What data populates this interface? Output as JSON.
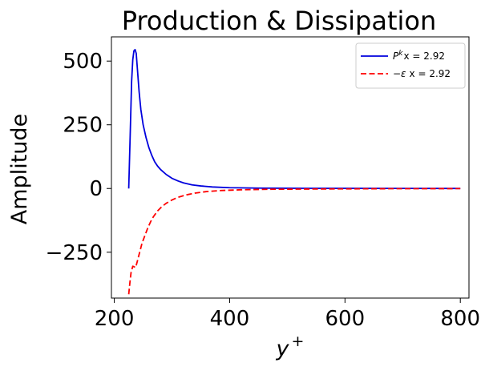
{
  "chart_data": {
    "type": "line",
    "title": "Production & Dissipation",
    "xlabel": "y",
    "xlabel_sup": "+",
    "ylabel": "Amplitude",
    "xlim": [
      195,
      815
    ],
    "ylim": [
      -430,
      595
    ],
    "xticks": [
      {
        "value": 200,
        "label": "200"
      },
      {
        "value": 400,
        "label": "400"
      },
      {
        "value": 600,
        "label": "600"
      },
      {
        "value": 800,
        "label": "800"
      }
    ],
    "yticks": [
      {
        "value": 500,
        "label": "500"
      },
      {
        "value": 250,
        "label": "250"
      },
      {
        "value": 0,
        "label": "0"
      },
      {
        "value": -250,
        "label": "−250"
      }
    ],
    "grid": false,
    "legend_position": "top-right",
    "series": [
      {
        "name_main": "P",
        "name_sup": "k",
        "name_rest": "x = 2.92",
        "color": "#0000dd",
        "dash": "solid",
        "x": [
          225,
          228,
          230,
          232,
          234,
          236,
          238,
          240,
          243,
          246,
          250,
          255,
          260,
          265,
          270,
          275,
          280,
          290,
          300,
          310,
          320,
          335,
          350,
          370,
          400,
          450,
          500,
          600,
          700,
          800
        ],
        "y": [
          0,
          250,
          420,
          505,
          540,
          545,
          530,
          470,
          380,
          310,
          250,
          200,
          160,
          130,
          105,
          88,
          75,
          55,
          40,
          30,
          22,
          14,
          10,
          6,
          3,
          1.5,
          1,
          0.5,
          0.3,
          0.2
        ]
      },
      {
        "name_main": "−ε",
        "name_sup": "",
        "name_rest": "x = 2.92",
        "color": "#ff0000",
        "dash": "dashed",
        "x": [
          225,
          227,
          229,
          232,
          235,
          237,
          240,
          244,
          248,
          253,
          258,
          263,
          268,
          275,
          282,
          290,
          300,
          310,
          325,
          340,
          360,
          385,
          420,
          470,
          550,
          650,
          800
        ],
        "y": [
          -415,
          -370,
          -330,
          -305,
          -308,
          -310,
          -285,
          -250,
          -215,
          -185,
          -155,
          -130,
          -110,
          -88,
          -72,
          -58,
          -45,
          -35,
          -25,
          -18,
          -12,
          -8,
          -5,
          -3,
          -2,
          -1,
          -0.5
        ]
      }
    ]
  }
}
